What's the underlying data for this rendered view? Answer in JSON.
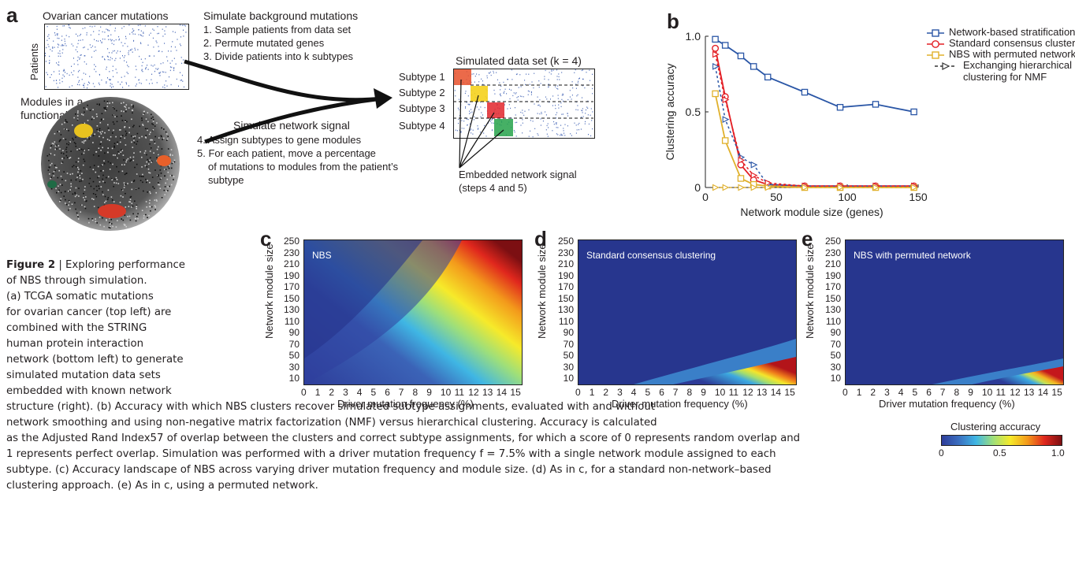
{
  "panel_a": {
    "letter": "a",
    "matrix_title": "Ovarian cancer mutations",
    "patients_label": "Patients",
    "network_title_line1": "Modules in a",
    "network_title_line2": "functional network",
    "bg_title": "Simulate background mutations",
    "bg_steps": [
      "1. Sample patients from data set",
      "2. Permute mutated genes",
      "3. Divide patients into k subtypes"
    ],
    "sig_title": "Simulate network signal",
    "sig_steps": [
      "4. Assign subtypes to gene modules",
      "5. For each patient, move a percentage",
      "of mutations to modules from the patient’s",
      "subtype"
    ],
    "sim_title": "Simulated data set (k = 4)",
    "subtypes": [
      "Subtype 1",
      "Subtype 2",
      "Subtype 3",
      "Subtype 4"
    ],
    "subtype_colors": [
      "#e8502a",
      "#f5d21d",
      "#e2262c",
      "#26a24a"
    ],
    "embedded_line1": "Embedded network signal",
    "embedded_line2": "(steps 4 and 5)"
  },
  "panel_b": {
    "letter": "b",
    "legend": [
      {
        "label": "Network-based stratification (NBS)",
        "color": "#2a56a6"
      },
      {
        "label": "Standard consensus clustering",
        "color": "#e31e24"
      },
      {
        "label": "NBS with permuted network",
        "color": "#e0b02b"
      },
      {
        "label": "Exchanging hierarchical",
        "color": "#333333"
      },
      {
        "label": "clustering for NMF",
        "color": "#333333"
      }
    ]
  },
  "chart_data": [
    {
      "type": "line",
      "xlabel": "Network module size (genes)",
      "ylabel": "Clustering accuracy",
      "xlim": [
        0,
        150
      ],
      "ylim": [
        0,
        1
      ],
      "x_ticks": [
        "0",
        "50",
        "100",
        "150"
      ],
      "y_ticks": [
        "0",
        "0.5",
        "1.0"
      ],
      "series": [
        {
          "name": "Network-based stratification (NBS)",
          "color": "#2a56a6",
          "marker": "square",
          "x": [
            7,
            14,
            25,
            34,
            44,
            70,
            95,
            120,
            147
          ],
          "y": [
            0.98,
            0.94,
            0.87,
            0.8,
            0.73,
            0.63,
            0.53,
            0.55,
            0.5
          ]
        },
        {
          "name": "Standard consensus clustering",
          "color": "#e31e24",
          "marker": "circle",
          "x": [
            7,
            14,
            25,
            34,
            44,
            70,
            95,
            120,
            147
          ],
          "y": [
            0.92,
            0.6,
            0.15,
            0.05,
            0.02,
            0.01,
            0.01,
            0.01,
            0.01
          ]
        },
        {
          "name": "NBS with permuted network",
          "color": "#e0b02b",
          "marker": "square",
          "x": [
            7,
            14,
            25,
            34,
            44,
            70,
            95,
            120,
            147
          ],
          "y": [
            0.62,
            0.31,
            0.06,
            0.02,
            0.01,
            0.0,
            0.0,
            0.0,
            0.0
          ]
        },
        {
          "name": "Exchanging hierarchical clustering for NMF",
          "color": "#2a56a6",
          "marker": "triangle",
          "dashed": true,
          "x": [
            7,
            14,
            25,
            34,
            44,
            70,
            95,
            120,
            147
          ],
          "y": [
            0.8,
            0.45,
            0.2,
            0.15,
            0.02,
            0.01,
            0.01,
            0.01,
            0.01
          ]
        },
        {
          "name": "Exchanging hierarchical clustering for NMF",
          "color": "#e31e24",
          "marker": "triangle",
          "dashed": true,
          "x": [
            7,
            14,
            25,
            34,
            44,
            70,
            95,
            120,
            147
          ],
          "y": [
            0.88,
            0.58,
            0.18,
            0.08,
            0.03,
            0.01,
            0.01,
            0.01,
            0.01
          ]
        },
        {
          "name": "Exchanging hierarchical clustering for NMF",
          "color": "#e0b02b",
          "marker": "triangle",
          "dashed": true,
          "x": [
            7,
            14,
            25,
            34,
            44,
            70,
            95,
            120,
            147
          ],
          "y": [
            0.0,
            0.0,
            0.0,
            0.0,
            0.0,
            0.0,
            0.0,
            0.0,
            0.0
          ]
        }
      ]
    },
    {
      "type": "heatmap",
      "panel": "c",
      "title": "NBS",
      "xlabel": "Driver mutation frequency (%)",
      "ylabel": "Network module size",
      "x_ticks": [
        "0",
        "1",
        "2",
        "3",
        "4",
        "5",
        "6",
        "7",
        "8",
        "9",
        "10",
        "11",
        "12",
        "13",
        "14",
        "15"
      ],
      "y_ticks": [
        "250",
        "230",
        "210",
        "190",
        "170",
        "150",
        "130",
        "110",
        "90",
        "70",
        "50",
        "30",
        "10"
      ]
    },
    {
      "type": "heatmap",
      "panel": "d",
      "title": "Standard consensus clustering",
      "xlabel": "Driver mutation frequency (%)",
      "ylabel": "Network module size",
      "x_ticks": [
        "0",
        "1",
        "2",
        "3",
        "4",
        "5",
        "6",
        "7",
        "8",
        "9",
        "10",
        "11",
        "12",
        "13",
        "14",
        "15"
      ],
      "y_ticks": [
        "250",
        "230",
        "210",
        "190",
        "170",
        "150",
        "130",
        "110",
        "90",
        "70",
        "50",
        "30",
        "10"
      ]
    },
    {
      "type": "heatmap",
      "panel": "e",
      "title": "NBS with permuted network",
      "xlabel": "Driver mutation frequency (%)",
      "ylabel": "Network module size",
      "x_ticks": [
        "0",
        "1",
        "2",
        "3",
        "4",
        "5",
        "6",
        "7",
        "8",
        "9",
        "10",
        "11",
        "12",
        "13",
        "14",
        "15"
      ],
      "y_ticks": [
        "250",
        "230",
        "210",
        "190",
        "170",
        "150",
        "130",
        "110",
        "90",
        "70",
        "50",
        "30",
        "10"
      ]
    }
  ],
  "colorbar": {
    "title": "Clustering accuracy",
    "ticks": [
      "0",
      "0.5",
      "1.0"
    ]
  },
  "caption": {
    "label": "Figure 2",
    "sep": " | ",
    "lines": [
      "Exploring performance",
      "of NBS through simulation.",
      "(a) TCGA somatic mutations",
      "for ovarian cancer (top left) are",
      "combined with the STRING",
      "human protein interaction",
      "network (bottom left) to generate",
      "simulated mutation data sets",
      "embedded with known network",
      "structure (right). (b) Accuracy with which NBS clusters recover simulated subtype assignments, evaluated with and without",
      "network smoothing and using non-negative matrix factorization (NMF) versus hierarchical clustering. Accuracy is calculated",
      "as the Adjusted Rand Index57 of overlap between the clusters and correct subtype assignments, for which a score of 0 represents random overlap and",
      "1 represents perfect overlap. Simulation was performed with a driver mutation frequency f = 7.5% with a single network module assigned to each",
      "subtype. (c) Accuracy landscape of NBS across varying driver mutation frequency and module size. (d) As in c, for a standard non-network–based",
      "clustering approach. (e) As in c, using a permuted network."
    ]
  }
}
